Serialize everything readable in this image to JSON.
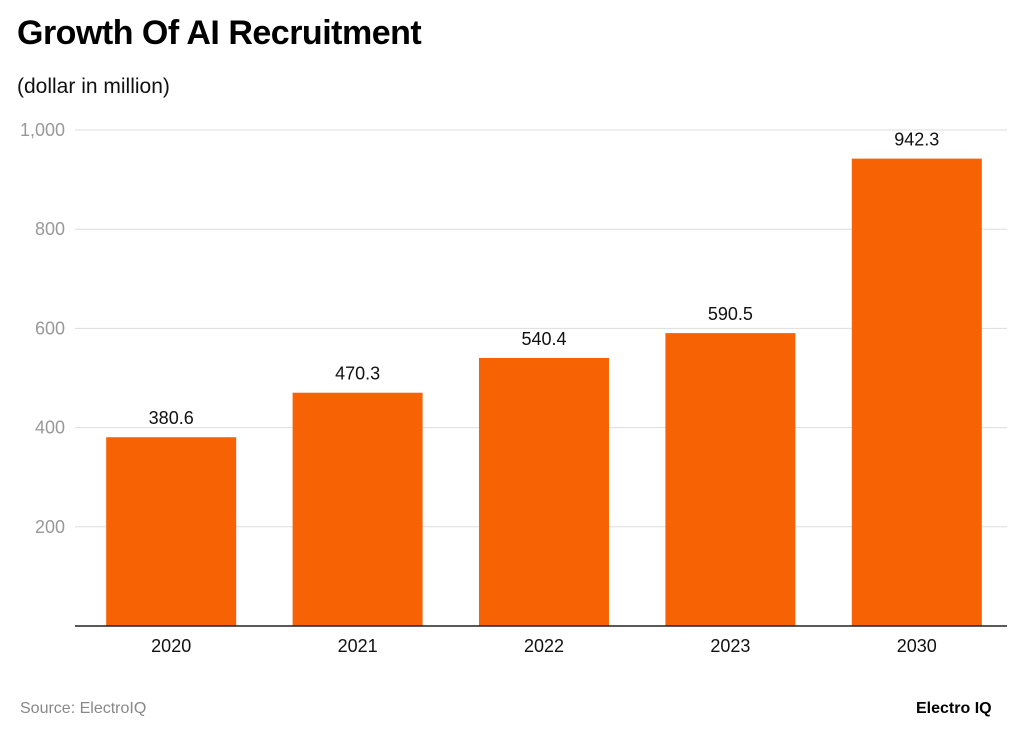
{
  "chart_data": {
    "type": "bar",
    "title": "Growth Of AI Recruitment",
    "subtitle": "(dollar in million)",
    "categories": [
      "2020",
      "2021",
      "2022",
      "2023",
      "2030"
    ],
    "values": [
      380.6,
      470.3,
      540.4,
      590.5,
      942.3
    ],
    "value_labels": [
      "380.6",
      "470.3",
      "540.4",
      "590.5",
      "942.3"
    ],
    "ylim": [
      0,
      1000
    ],
    "yticks": [
      200,
      400,
      600,
      800,
      1000
    ],
    "ytick_labels": [
      "200",
      "400",
      "600",
      "800",
      "1,000"
    ],
    "grid": true,
    "bar_color": "#F76205",
    "xlabel": "",
    "ylabel": ""
  },
  "footer": {
    "source": "Source: ElectroIQ",
    "logo": "Electro IQ"
  }
}
